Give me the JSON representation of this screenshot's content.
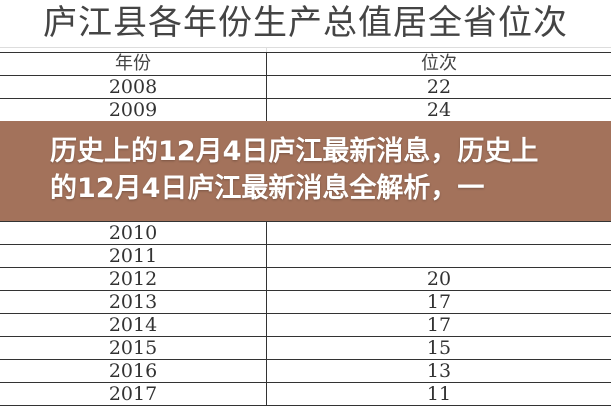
{
  "table": {
    "title": "庐江县各年份生产总值居全省位次",
    "headers": {
      "year": "年份",
      "rank": "位次"
    },
    "rows": [
      {
        "year": "2008",
        "rank": "22"
      },
      {
        "year": "2009",
        "rank": "24"
      },
      {
        "year": "2010",
        "rank": ""
      },
      {
        "year": "2011",
        "rank": ""
      },
      {
        "year": "2012",
        "rank": "20"
      },
      {
        "year": "2013",
        "rank": "17"
      },
      {
        "year": "2014",
        "rank": "17"
      },
      {
        "year": "2015",
        "rank": "15"
      },
      {
        "year": "2016",
        "rank": "13"
      },
      {
        "year": "2017",
        "rank": "11"
      }
    ]
  },
  "banner": {
    "headline": "历史上的12月4日庐江最新消息，历史上的12月4日庐江最新消息全解析，一",
    "color": "#9e6a52"
  }
}
